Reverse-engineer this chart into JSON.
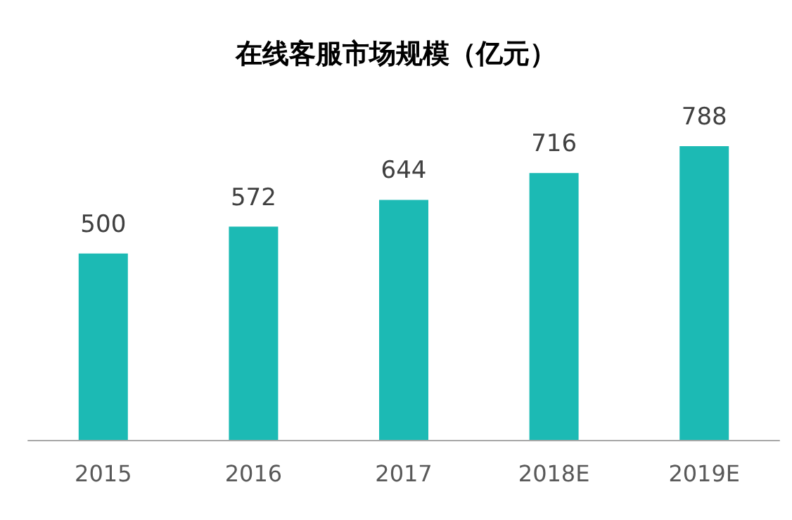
{
  "chart_data": {
    "type": "bar",
    "title": "在线客服市场规模（亿元）",
    "categories": [
      "2015",
      "2016",
      "2017",
      "2018E",
      "2019E"
    ],
    "values": [
      500,
      572,
      644,
      716,
      788
    ],
    "color": "#1cbab4",
    "data_labels": true
  }
}
